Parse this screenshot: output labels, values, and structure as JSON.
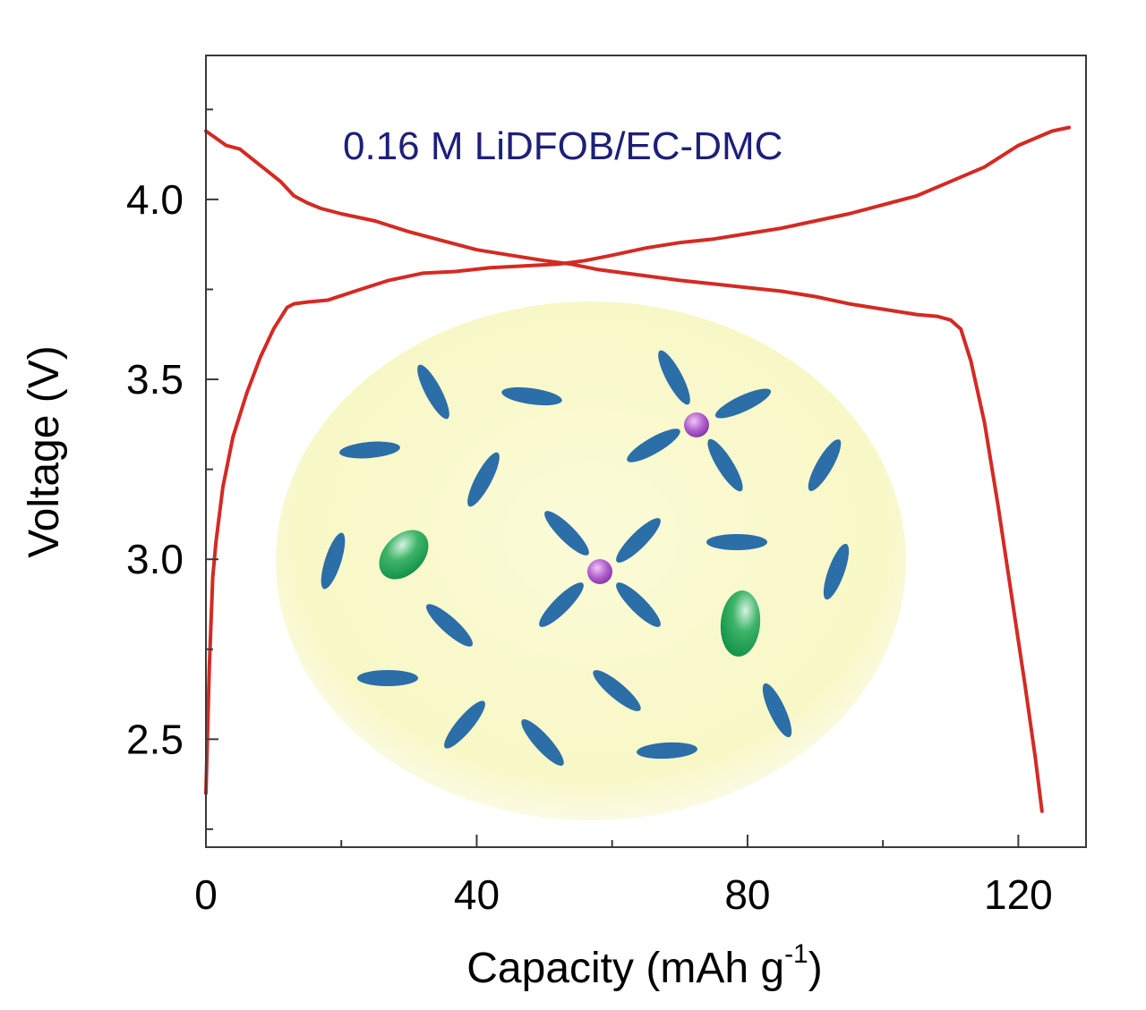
{
  "chart_data": {
    "type": "line",
    "xlabel": "Capacity (mAh g",
    "xlabel_superscript": "-1",
    "xlabel_close": ")",
    "ylabel": "Voltage (V)",
    "xlim": [
      0,
      130
    ],
    "ylim": [
      2.2,
      4.4
    ],
    "xticks": [
      0,
      40,
      80,
      120
    ],
    "xtick_labels": [
      "0",
      "40",
      "80",
      "120"
    ],
    "xminor": [
      20,
      60,
      100
    ],
    "yticks": [
      2.5,
      3.0,
      3.5,
      4.0
    ],
    "ytick_labels": [
      "2.5",
      "3.0",
      "3.5",
      "4.0"
    ],
    "yminor": [
      2.25,
      2.75,
      3.25,
      3.75,
      4.25
    ],
    "grid": false,
    "annotation": "0.16 M LiDFOB/EC-DMC",
    "colors": {
      "curve": "#d42a24",
      "annotation": "#1d1f7a"
    },
    "series": [
      {
        "x": [
          0,
          1.5,
          3,
          5,
          7,
          9,
          11,
          13,
          15,
          17,
          20,
          25,
          30,
          35,
          40,
          45,
          50,
          54,
          58,
          62,
          66,
          70,
          75,
          80,
          85,
          90,
          95,
          100,
          105,
          108,
          110,
          111.5,
          113,
          115,
          117,
          119,
          121,
          122.5,
          123.5
        ],
        "y": [
          4.19,
          4.17,
          4.15,
          4.14,
          4.11,
          4.08,
          4.05,
          4.01,
          3.99,
          3.975,
          3.96,
          3.94,
          3.91,
          3.885,
          3.86,
          3.845,
          3.83,
          3.82,
          3.805,
          3.795,
          3.785,
          3.775,
          3.765,
          3.755,
          3.745,
          3.73,
          3.71,
          3.695,
          3.68,
          3.675,
          3.665,
          3.64,
          3.55,
          3.38,
          3.15,
          2.9,
          2.65,
          2.45,
          2.3
        ]
      },
      {
        "x": [
          0,
          0.5,
          1,
          1.5,
          2.5,
          4,
          6,
          8,
          10,
          12,
          13,
          15,
          18,
          22,
          27,
          32,
          37,
          42,
          47,
          52,
          56,
          60,
          65,
          70,
          75,
          80,
          85,
          90,
          95,
          100,
          105,
          110,
          115,
          120,
          125,
          127.5
        ],
        "y": [
          2.35,
          2.7,
          2.95,
          3.05,
          3.2,
          3.34,
          3.46,
          3.56,
          3.64,
          3.7,
          3.71,
          3.715,
          3.72,
          3.745,
          3.775,
          3.795,
          3.8,
          3.81,
          3.815,
          3.82,
          3.83,
          3.845,
          3.865,
          3.88,
          3.89,
          3.905,
          3.92,
          3.94,
          3.96,
          3.985,
          4.01,
          4.05,
          4.09,
          4.15,
          4.19,
          4.2
        ]
      }
    ]
  }
}
